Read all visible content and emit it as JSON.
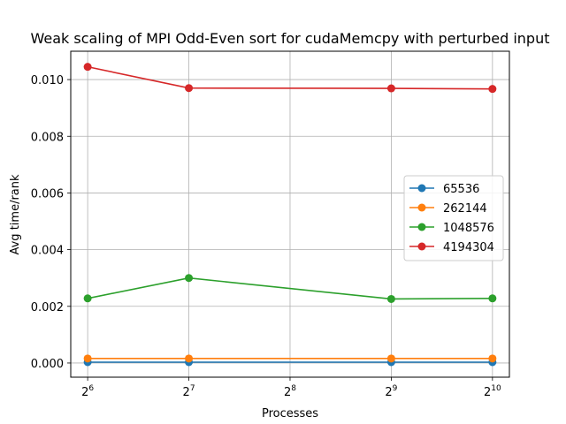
{
  "chart_data": {
    "type": "line",
    "title": "Weak scaling of MPI Odd-Even sort for cudaMemcpy with perturbed input",
    "xlabel": "Processes",
    "ylabel": "Avg time/rank",
    "x_scale": "log2",
    "x": [
      64,
      128,
      512,
      1024
    ],
    "x_tick_exponents": [
      "6",
      "7",
      "8",
      "9",
      "10"
    ],
    "x_tick_values": [
      64,
      128,
      256,
      512,
      1024
    ],
    "x_tick_base": "2",
    "xlim": [
      57,
      1150
    ],
    "ylim": [
      -0.0005,
      0.011
    ],
    "y_ticks": [
      0.0,
      0.002,
      0.004,
      0.006,
      0.008,
      0.01
    ],
    "y_tick_labels": [
      "0.000",
      "0.002",
      "0.004",
      "0.006",
      "0.008",
      "0.010"
    ],
    "grid": true,
    "legend_position": "center-right",
    "series": [
      {
        "name": "65536",
        "color": "#1f77b4",
        "values": [
          3e-05,
          3e-05,
          3e-05,
          3e-05
        ]
      },
      {
        "name": "262144",
        "color": "#ff7f0e",
        "values": [
          0.00016,
          0.00016,
          0.00016,
          0.00016
        ]
      },
      {
        "name": "1048576",
        "color": "#2ca02c",
        "values": [
          0.00228,
          0.003,
          0.00226,
          0.00228
        ]
      },
      {
        "name": "4194304",
        "color": "#d62728",
        "values": [
          0.01045,
          0.0097,
          0.00969,
          0.00967
        ]
      }
    ]
  }
}
